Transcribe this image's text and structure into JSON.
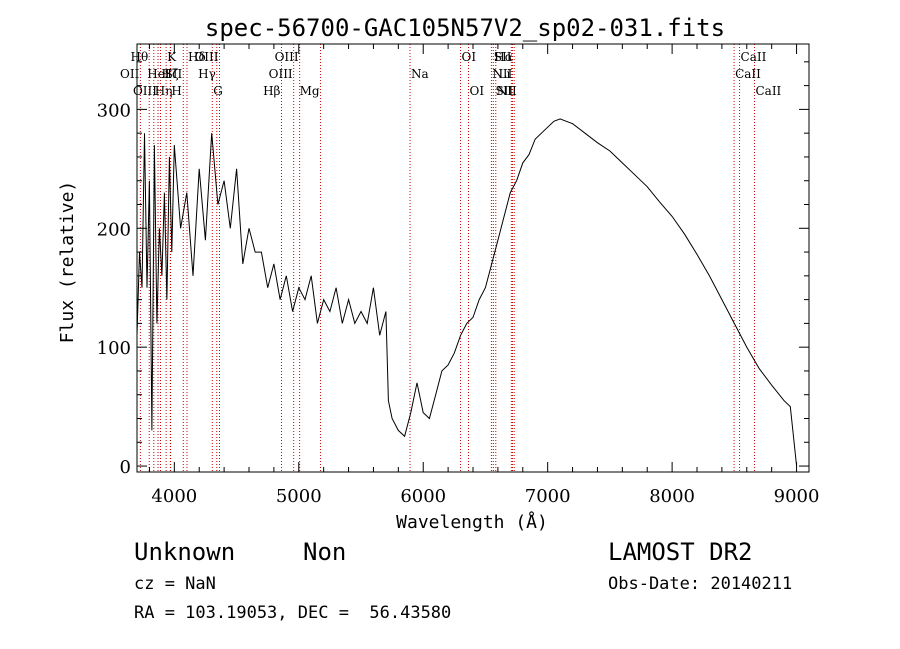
{
  "chart_data": {
    "type": "line",
    "title": "spec-56700-GAC105N57V2_sp02-031.fits",
    "xlabel": "Wavelength (Å)",
    "ylabel": "Flux (relative)",
    "xlim": [
      3700,
      9100
    ],
    "ylim": [
      -5,
      355
    ],
    "x_ticks": [
      4000,
      5000,
      6000,
      7000,
      8000,
      9000
    ],
    "y_ticks": [
      0,
      100,
      200,
      300
    ],
    "x_tick_labels": [
      "4000",
      "5000",
      "6000",
      "7000",
      "8000",
      "9000"
    ],
    "y_tick_labels": [
      "0",
      "100",
      "200",
      "300"
    ],
    "grid": false,
    "line_color": "#000000",
    "marker_color": "#cc0000",
    "series": [
      {
        "x": [
          3700,
          3720,
          3740,
          3760,
          3780,
          3800,
          3820,
          3840,
          3860,
          3880,
          3900,
          3920,
          3940,
          3960,
          3980,
          4000,
          4050,
          4100,
          4150,
          4200,
          4250,
          4300,
          4350,
          4400,
          4450,
          4500,
          4550,
          4600,
          4650,
          4700,
          4750,
          4800,
          4850,
          4900,
          4950,
          5000,
          5050,
          5100,
          5150,
          5200,
          5250,
          5300,
          5350,
          5400,
          5450,
          5500,
          5550,
          5600,
          5650,
          5700,
          5720,
          5750,
          5800,
          5850,
          5900,
          5950,
          6000,
          6050,
          6100,
          6150,
          6200,
          6250,
          6300,
          6350,
          6400,
          6450,
          6500,
          6550,
          6600,
          6650,
          6700,
          6750,
          6800,
          6850,
          6900,
          6950,
          7000,
          7050,
          7100,
          7150,
          7200,
          7300,
          7400,
          7500,
          7600,
          7700,
          7800,
          7900,
          8000,
          8100,
          8200,
          8300,
          8400,
          8500,
          8600,
          8700,
          8800,
          8900,
          8950,
          9000
        ],
        "y": [
          110,
          180,
          150,
          280,
          150,
          240,
          30,
          270,
          120,
          200,
          160,
          230,
          140,
          260,
          180,
          270,
          200,
          230,
          160,
          250,
          190,
          280,
          220,
          240,
          200,
          250,
          170,
          200,
          180,
          180,
          150,
          170,
          140,
          160,
          130,
          150,
          140,
          160,
          120,
          140,
          130,
          150,
          120,
          140,
          120,
          130,
          120,
          150,
          110,
          130,
          55,
          40,
          30,
          25,
          45,
          70,
          45,
          40,
          60,
          80,
          85,
          95,
          110,
          120,
          125,
          140,
          150,
          170,
          190,
          210,
          230,
          240,
          255,
          262,
          275,
          280,
          285,
          290,
          292,
          290,
          288,
          280,
          272,
          265,
          255,
          245,
          235,
          222,
          210,
          195,
          178,
          160,
          140,
          120,
          100,
          82,
          68,
          55,
          50,
          0
        ]
      }
    ],
    "lines": [
      {
        "name": "Hθ",
        "x": 3798,
        "row": 1,
        "ha": "right"
      },
      {
        "name": "OII",
        "x": 3727,
        "row": 2,
        "ha": "right"
      },
      {
        "name": "OIII",
        "x": 3869,
        "row": 3,
        "ha": "right"
      },
      {
        "name": "Hζ",
        "x": 3889,
        "row": 2,
        "ha": "left"
      },
      {
        "name": "Hη",
        "x": 3835,
        "row": 3,
        "ha": "left"
      },
      {
        "name": "K",
        "x": 3934,
        "row": 1,
        "ha": "left"
      },
      {
        "name": "HeI",
        "x": 3970,
        "row": 2,
        "ha": "right"
      },
      {
        "name": "H",
        "x": 3968,
        "row": 3,
        "ha": "left"
      },
      {
        "name": "SII",
        "x": 4072,
        "row": 2,
        "ha": "right"
      },
      {
        "name": "Hδ",
        "x": 4102,
        "row": 1,
        "ha": "left"
      },
      {
        "name": "OIII",
        "x": 4363,
        "row": 1,
        "ha": "right"
      },
      {
        "name": "Hγ",
        "x": 4341,
        "row": 2,
        "ha": "right"
      },
      {
        "name": "G",
        "x": 4305,
        "row": 3,
        "ha": "left"
      },
      {
        "name": "Hβ",
        "x": 4861,
        "row": 3,
        "ha": "right"
      },
      {
        "name": "OIII",
        "x": 4959,
        "row": 2,
        "ha": "right"
      },
      {
        "name": "OIII",
        "x": 5007,
        "row": 1,
        "ha": "right"
      },
      {
        "name": "Mg",
        "x": 5175,
        "row": 3,
        "ha": "right"
      },
      {
        "name": "Na",
        "x": 5894,
        "row": 2,
        "ha": "left"
      },
      {
        "name": "OI",
        "x": 6300,
        "row": 1,
        "ha": "left"
      },
      {
        "name": "OI",
        "x": 6364,
        "row": 3,
        "ha": "left"
      },
      {
        "name": "Hα",
        "x": 6563,
        "row": 1,
        "ha": "left"
      },
      {
        "name": "NII",
        "x": 6548,
        "row": 2,
        "ha": "left"
      },
      {
        "name": "NII",
        "x": 6583,
        "row": 3,
        "ha": "left"
      },
      {
        "name": "SII",
        "x": 6717,
        "row": 1,
        "ha": "right"
      },
      {
        "name": "Li",
        "x": 6708,
        "row": 2,
        "ha": "right"
      },
      {
        "name": "SII",
        "x": 6731,
        "row": 3,
        "ha": "right"
      },
      {
        "name": "CaII",
        "x": 8542,
        "row": 1,
        "ha": "left"
      },
      {
        "name": "CaII",
        "x": 8498,
        "row": 2,
        "ha": "left"
      },
      {
        "name": "CaII",
        "x": 8662,
        "row": 3,
        "ha": "left"
      }
    ]
  },
  "info": {
    "class_label": "Unknown",
    "subclass_label": "Non",
    "survey": "LAMOST DR2",
    "redshift": "cz = NaN",
    "obs_date": "Obs-Date: 20140211",
    "coords": "RA = 103.19053, DEC =  56.43580"
  }
}
